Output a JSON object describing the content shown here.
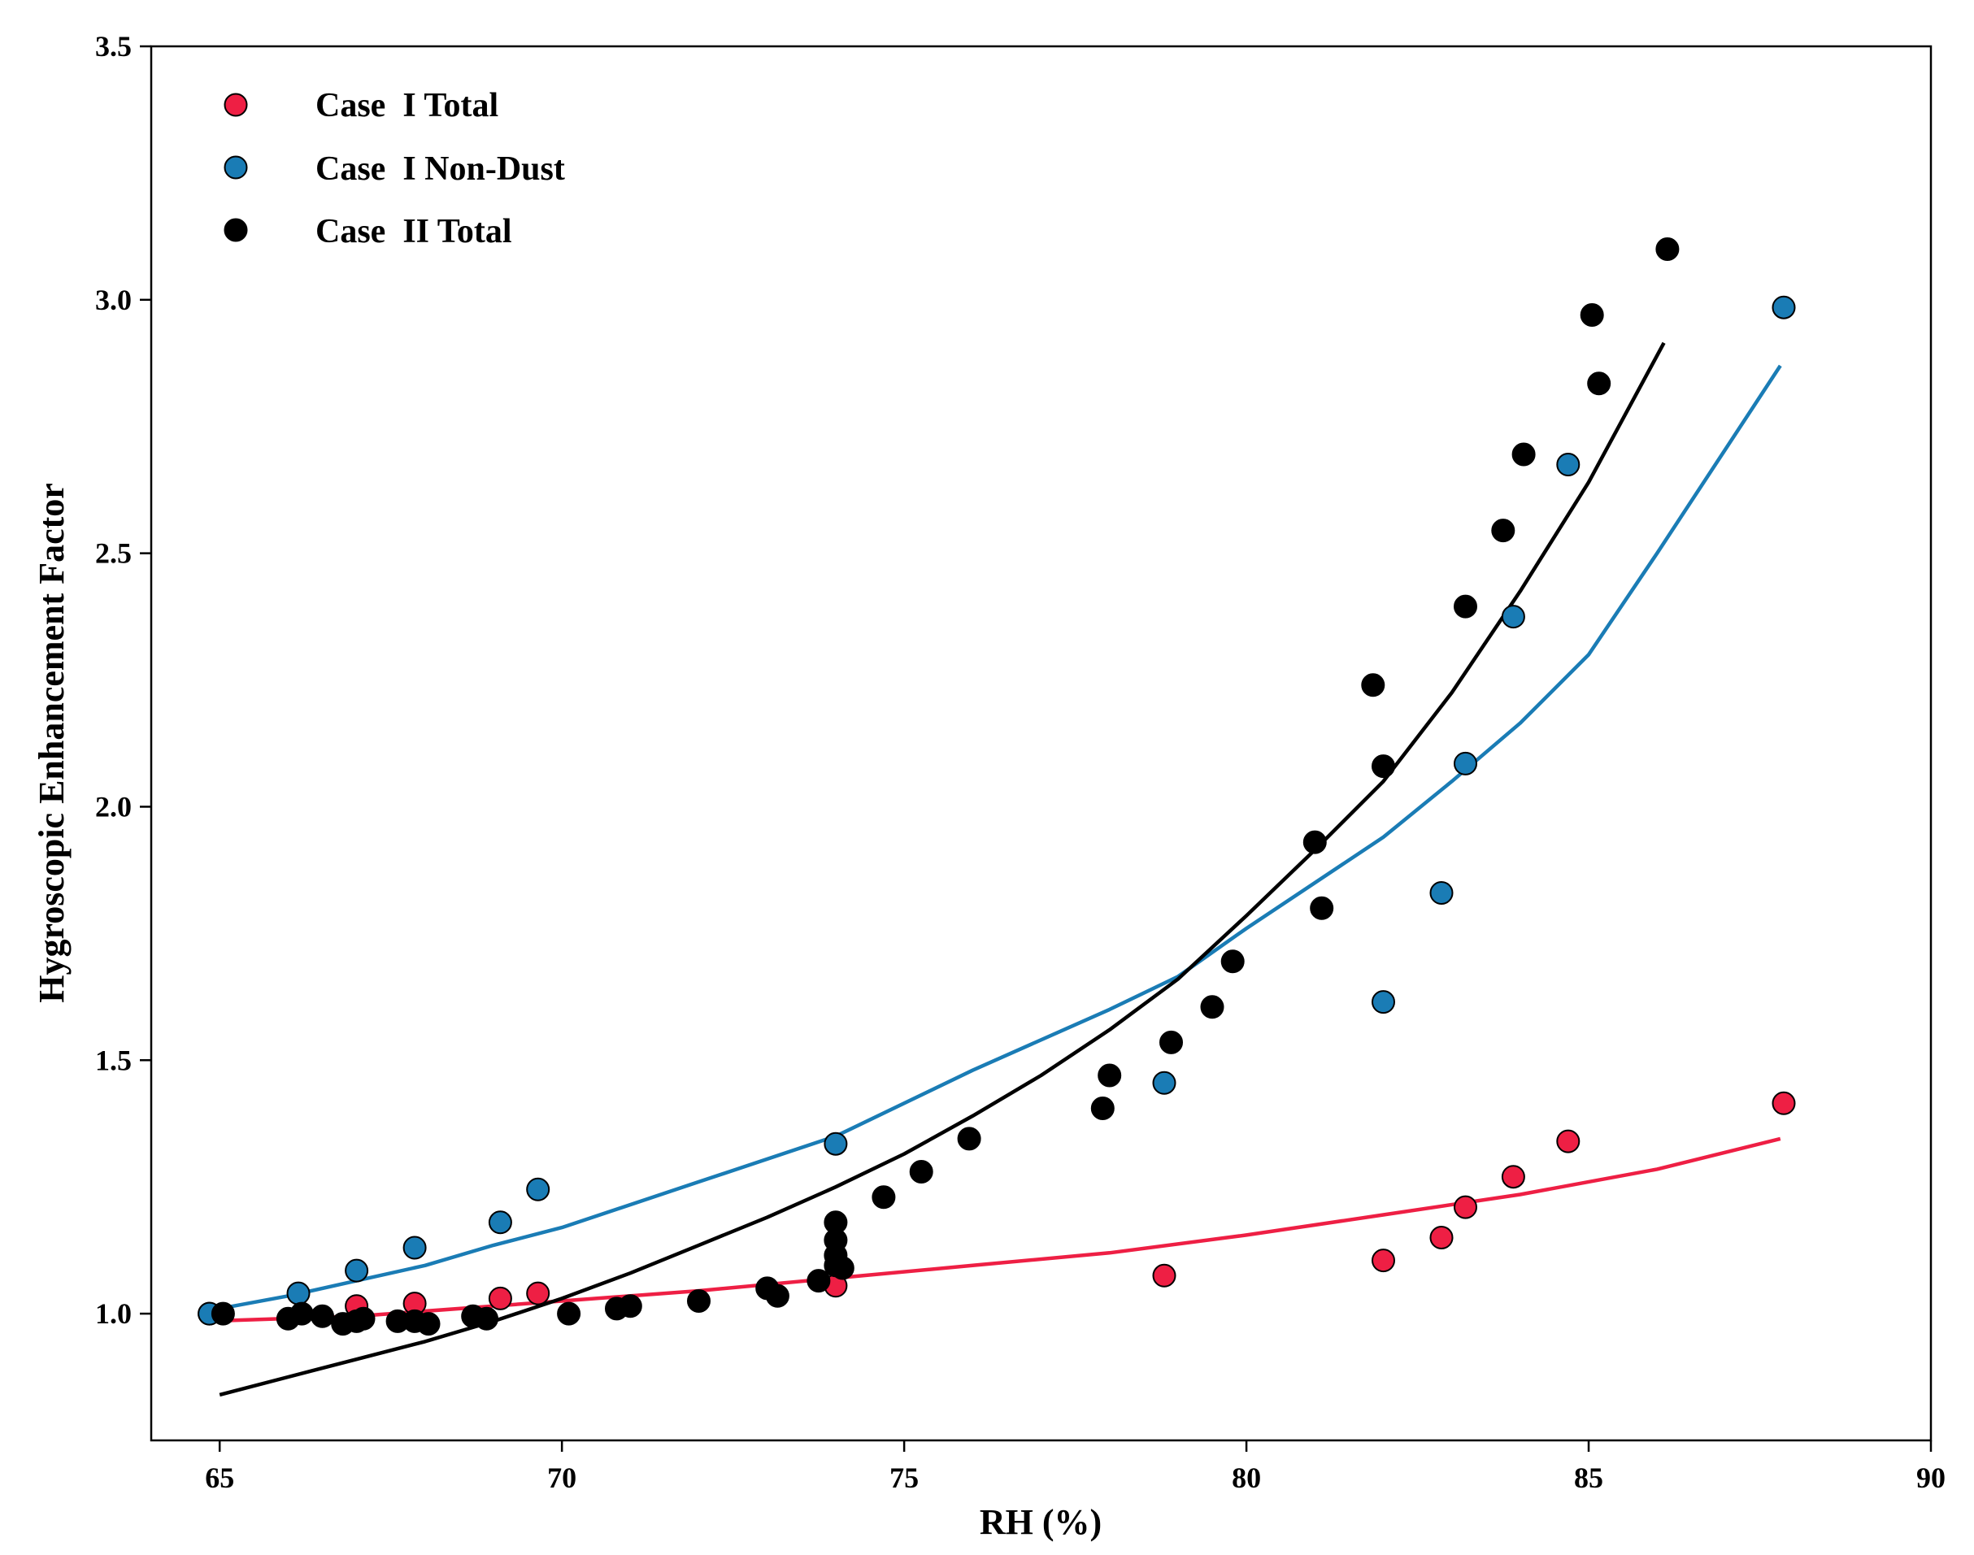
{
  "chart_data": {
    "type": "scatter",
    "title": "",
    "xlabel": "RH (%)",
    "ylabel": "Hygroscopic Enhancement Factor",
    "xlim": [
      64,
      90
    ],
    "ylim": [
      0.75,
      3.5
    ],
    "xticks": [
      65,
      70,
      75,
      80,
      85,
      90
    ],
    "yticks": [
      1.0,
      1.5,
      2.0,
      2.5,
      3.0,
      3.5
    ],
    "xtick_labels": [
      "65",
      "70",
      "75",
      "80",
      "85",
      "90"
    ],
    "ytick_labels": [
      "1.0",
      "1.5",
      "2.0",
      "2.5",
      "3.0",
      "3.5"
    ],
    "grid": false,
    "legend_position": "top-left",
    "series": [
      {
        "name": "Case  I Total",
        "color": "#ee1f44",
        "points": [
          [
            64.85,
            1.0
          ],
          [
            67.0,
            1.015
          ],
          [
            67.85,
            1.02
          ],
          [
            69.1,
            1.03
          ],
          [
            69.65,
            1.04
          ],
          [
            74.0,
            1.055
          ],
          [
            78.8,
            1.075
          ],
          [
            82.0,
            1.105
          ],
          [
            82.85,
            1.15
          ],
          [
            83.2,
            1.21
          ],
          [
            83.9,
            1.27
          ],
          [
            84.7,
            1.34
          ],
          [
            87.85,
            1.415
          ]
        ],
        "fit": [
          [
            64.8,
            0.985
          ],
          [
            67.0,
            0.995
          ],
          [
            70.0,
            1.025
          ],
          [
            72.0,
            1.045
          ],
          [
            74.0,
            1.07
          ],
          [
            76.0,
            1.095
          ],
          [
            78.0,
            1.12
          ],
          [
            80.0,
            1.155
          ],
          [
            82.0,
            1.195
          ],
          [
            84.0,
            1.235
          ],
          [
            86.0,
            1.285
          ],
          [
            87.8,
            1.345
          ]
        ]
      },
      {
        "name": "Case  I Non-Dust",
        "color": "#1a7cb5",
        "points": [
          [
            64.85,
            1.0
          ],
          [
            66.15,
            1.04
          ],
          [
            67.0,
            1.085
          ],
          [
            67.85,
            1.13
          ],
          [
            69.1,
            1.18
          ],
          [
            69.65,
            1.245
          ],
          [
            74.0,
            1.335
          ],
          [
            78.8,
            1.455
          ],
          [
            82.0,
            1.615
          ],
          [
            82.85,
            1.83
          ],
          [
            83.2,
            2.085
          ],
          [
            83.9,
            2.375
          ],
          [
            84.7,
            2.675
          ],
          [
            87.85,
            2.985
          ]
        ],
        "fit": [
          [
            64.8,
            1.005
          ],
          [
            66.0,
            1.035
          ],
          [
            67.0,
            1.065
          ],
          [
            68.0,
            1.095
          ],
          [
            69.0,
            1.135
          ],
          [
            70.0,
            1.17
          ],
          [
            72.0,
            1.26
          ],
          [
            74.0,
            1.35
          ],
          [
            76.0,
            1.48
          ],
          [
            78.0,
            1.6
          ],
          [
            79.0,
            1.665
          ],
          [
            80.0,
            1.76
          ],
          [
            82.0,
            1.94
          ],
          [
            83.0,
            2.05
          ],
          [
            84.0,
            2.165
          ],
          [
            85.0,
            2.3
          ],
          [
            86.0,
            2.5
          ],
          [
            87.8,
            2.87
          ]
        ]
      },
      {
        "name": "Case  II Total",
        "color": "#000000",
        "points": [
          [
            65.05,
            1.0
          ],
          [
            66.0,
            0.99
          ],
          [
            66.2,
            1.0
          ],
          [
            66.5,
            0.995
          ],
          [
            66.8,
            0.98
          ],
          [
            67.0,
            0.985
          ],
          [
            67.1,
            0.99
          ],
          [
            67.6,
            0.985
          ],
          [
            67.85,
            0.985
          ],
          [
            68.05,
            0.98
          ],
          [
            68.7,
            0.995
          ],
          [
            68.9,
            0.99
          ],
          [
            70.1,
            1.0
          ],
          [
            70.8,
            1.01
          ],
          [
            71.0,
            1.015
          ],
          [
            72.0,
            1.025
          ],
          [
            73.0,
            1.05
          ],
          [
            73.15,
            1.035
          ],
          [
            73.75,
            1.065
          ],
          [
            74.0,
            1.095
          ],
          [
            74.0,
            1.115
          ],
          [
            74.0,
            1.145
          ],
          [
            74.0,
            1.18
          ],
          [
            74.1,
            1.09
          ],
          [
            74.7,
            1.23
          ],
          [
            75.25,
            1.28
          ],
          [
            75.95,
            1.345
          ],
          [
            77.9,
            1.405
          ],
          [
            78.0,
            1.47
          ],
          [
            78.9,
            1.535
          ],
          [
            79.5,
            1.605
          ],
          [
            79.8,
            1.695
          ],
          [
            81.0,
            1.93
          ],
          [
            81.1,
            1.8
          ],
          [
            81.85,
            2.24
          ],
          [
            82.0,
            2.08
          ],
          [
            83.2,
            2.395
          ],
          [
            83.75,
            2.545
          ],
          [
            84.05,
            2.695
          ],
          [
            85.05,
            2.97
          ],
          [
            85.15,
            2.835
          ],
          [
            86.15,
            3.1
          ]
        ],
        "fit": [
          [
            65.0,
            0.84
          ],
          [
            66.0,
            0.875
          ],
          [
            67.0,
            0.91
          ],
          [
            68.0,
            0.945
          ],
          [
            69.0,
            0.985
          ],
          [
            70.0,
            1.03
          ],
          [
            71.0,
            1.08
          ],
          [
            72.0,
            1.135
          ],
          [
            73.0,
            1.19
          ],
          [
            74.0,
            1.25
          ],
          [
            75.0,
            1.315
          ],
          [
            76.0,
            1.39
          ],
          [
            77.0,
            1.47
          ],
          [
            78.0,
            1.56
          ],
          [
            79.0,
            1.66
          ],
          [
            80.0,
            1.785
          ],
          [
            81.0,
            1.915
          ],
          [
            82.0,
            2.05
          ],
          [
            83.0,
            2.225
          ],
          [
            84.0,
            2.425
          ],
          [
            85.0,
            2.64
          ],
          [
            86.1,
            2.915
          ]
        ]
      }
    ]
  }
}
